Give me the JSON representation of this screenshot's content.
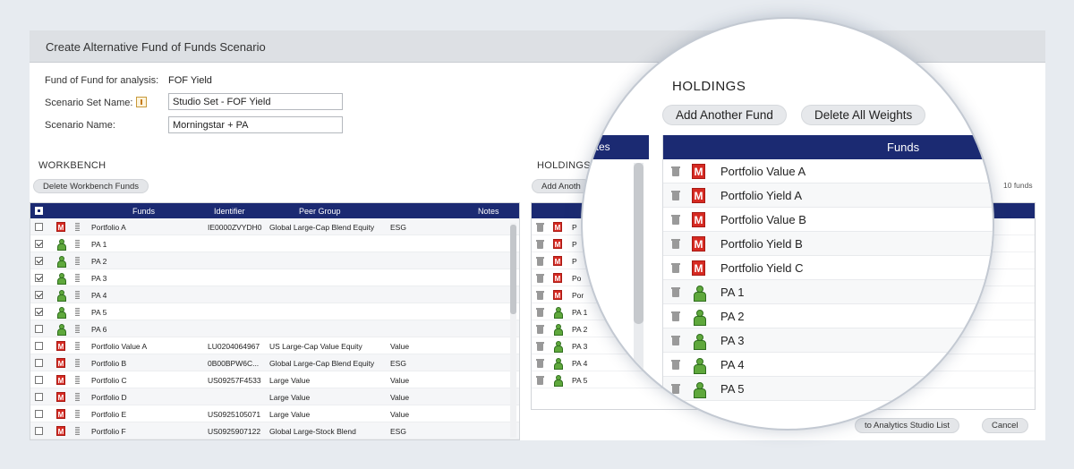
{
  "window": {
    "title": "Create Alternative Fund of Funds Scenario"
  },
  "form": {
    "fof_label": "Fund of Fund for analysis:",
    "fof_value": "FOF Yield",
    "set_label": "Scenario Set Name:",
    "set_value": "Studio Set - FOF Yield",
    "name_label": "Scenario Name:",
    "name_value": "Morningstar + PA"
  },
  "workbench": {
    "title": "WORKBENCH",
    "delete_button": "Delete Workbench Funds",
    "columns": {
      "funds": "Funds",
      "identifier": "Identifier",
      "peer_group": "Peer Group",
      "notes": "Notes"
    },
    "rows": [
      {
        "checked": false,
        "type": "ms",
        "name": "Portfolio A",
        "identifier": "IE0000ZVYDH0",
        "peer_group": "Global Large-Cap Blend Equity",
        "style": "ESG"
      },
      {
        "checked": true,
        "type": "pa",
        "name": "PA 1",
        "identifier": "",
        "peer_group": "",
        "style": ""
      },
      {
        "checked": true,
        "type": "pa",
        "name": "PA 2",
        "identifier": "",
        "peer_group": "",
        "style": ""
      },
      {
        "checked": true,
        "type": "pa",
        "name": "PA 3",
        "identifier": "",
        "peer_group": "",
        "style": ""
      },
      {
        "checked": true,
        "type": "pa",
        "name": "PA 4",
        "identifier": "",
        "peer_group": "",
        "style": ""
      },
      {
        "checked": true,
        "type": "pa",
        "name": "PA 5",
        "identifier": "",
        "peer_group": "",
        "style": ""
      },
      {
        "checked": false,
        "type": "pa",
        "name": "PA 6",
        "identifier": "",
        "peer_group": "",
        "style": ""
      },
      {
        "checked": false,
        "type": "ms",
        "name": "Portfolio Value A",
        "identifier": "LU0204064967",
        "peer_group": "US Large-Cap Value Equity",
        "style": "Value"
      },
      {
        "checked": false,
        "type": "ms",
        "name": "Portfolio B",
        "identifier": "0B00BPW6C...",
        "peer_group": "Global Large-Cap Blend Equity",
        "style": "ESG"
      },
      {
        "checked": false,
        "type": "ms",
        "name": "Portfolio C",
        "identifier": "US09257F4533",
        "peer_group": "Large Value",
        "style": "Value"
      },
      {
        "checked": false,
        "type": "ms",
        "name": "Portfolio D",
        "identifier": "",
        "peer_group": "Large Value",
        "style": "Value"
      },
      {
        "checked": false,
        "type": "ms",
        "name": "Portfolio E",
        "identifier": "US0925105071",
        "peer_group": "Large Value",
        "style": "Value"
      },
      {
        "checked": false,
        "type": "ms",
        "name": "Portfolio F",
        "identifier": "US0925907122",
        "peer_group": "Global Large-Stock Blend",
        "style": "ESG"
      }
    ]
  },
  "holdings_bg": {
    "title": "HOLDINGS",
    "add_button": "Add Anoth",
    "count": "10 funds",
    "rows": [
      {
        "type": "ms",
        "name": "P"
      },
      {
        "type": "ms",
        "name": "P"
      },
      {
        "type": "ms",
        "name": "P"
      },
      {
        "type": "ms",
        "name": "Po"
      },
      {
        "type": "ms",
        "name": "Por"
      },
      {
        "type": "pa",
        "name": "PA 1"
      },
      {
        "type": "pa",
        "name": "PA 2"
      },
      {
        "type": "pa",
        "name": "PA 3"
      },
      {
        "type": "pa",
        "name": "PA 4"
      },
      {
        "type": "pa",
        "name": "PA 5"
      }
    ]
  },
  "magnifier": {
    "title": "HOLDINGS",
    "add_button": "Add Another Fund",
    "delete_button": "Delete All Weights",
    "notes_header": "otes",
    "funds_header": "Funds",
    "rows": [
      {
        "type": "ms",
        "name": "Portfolio Value A"
      },
      {
        "type": "ms",
        "name": "Portfolio Yield A"
      },
      {
        "type": "ms",
        "name": "Portfolio Value B"
      },
      {
        "type": "ms",
        "name": "Portfolio Yield B"
      },
      {
        "type": "ms",
        "name": "Portfolio Yield C"
      },
      {
        "type": "pa",
        "name": "PA 1"
      },
      {
        "type": "pa",
        "name": "PA 2"
      },
      {
        "type": "pa",
        "name": "PA 3"
      },
      {
        "type": "pa",
        "name": "PA 4"
      },
      {
        "type": "pa",
        "name": "PA 5"
      }
    ]
  },
  "footer": {
    "list_button": "to Analytics Studio List",
    "cancel_button": "Cancel"
  },
  "icons": {
    "morningstar": "morningstar-m-icon",
    "portfolio": "person-icon",
    "trash": "trash-icon",
    "drag": "drag-handle-icon"
  },
  "colors": {
    "header_navy": "#1b2a72",
    "morningstar_red": "#d62a22",
    "pa_green": "#5fa83c"
  }
}
